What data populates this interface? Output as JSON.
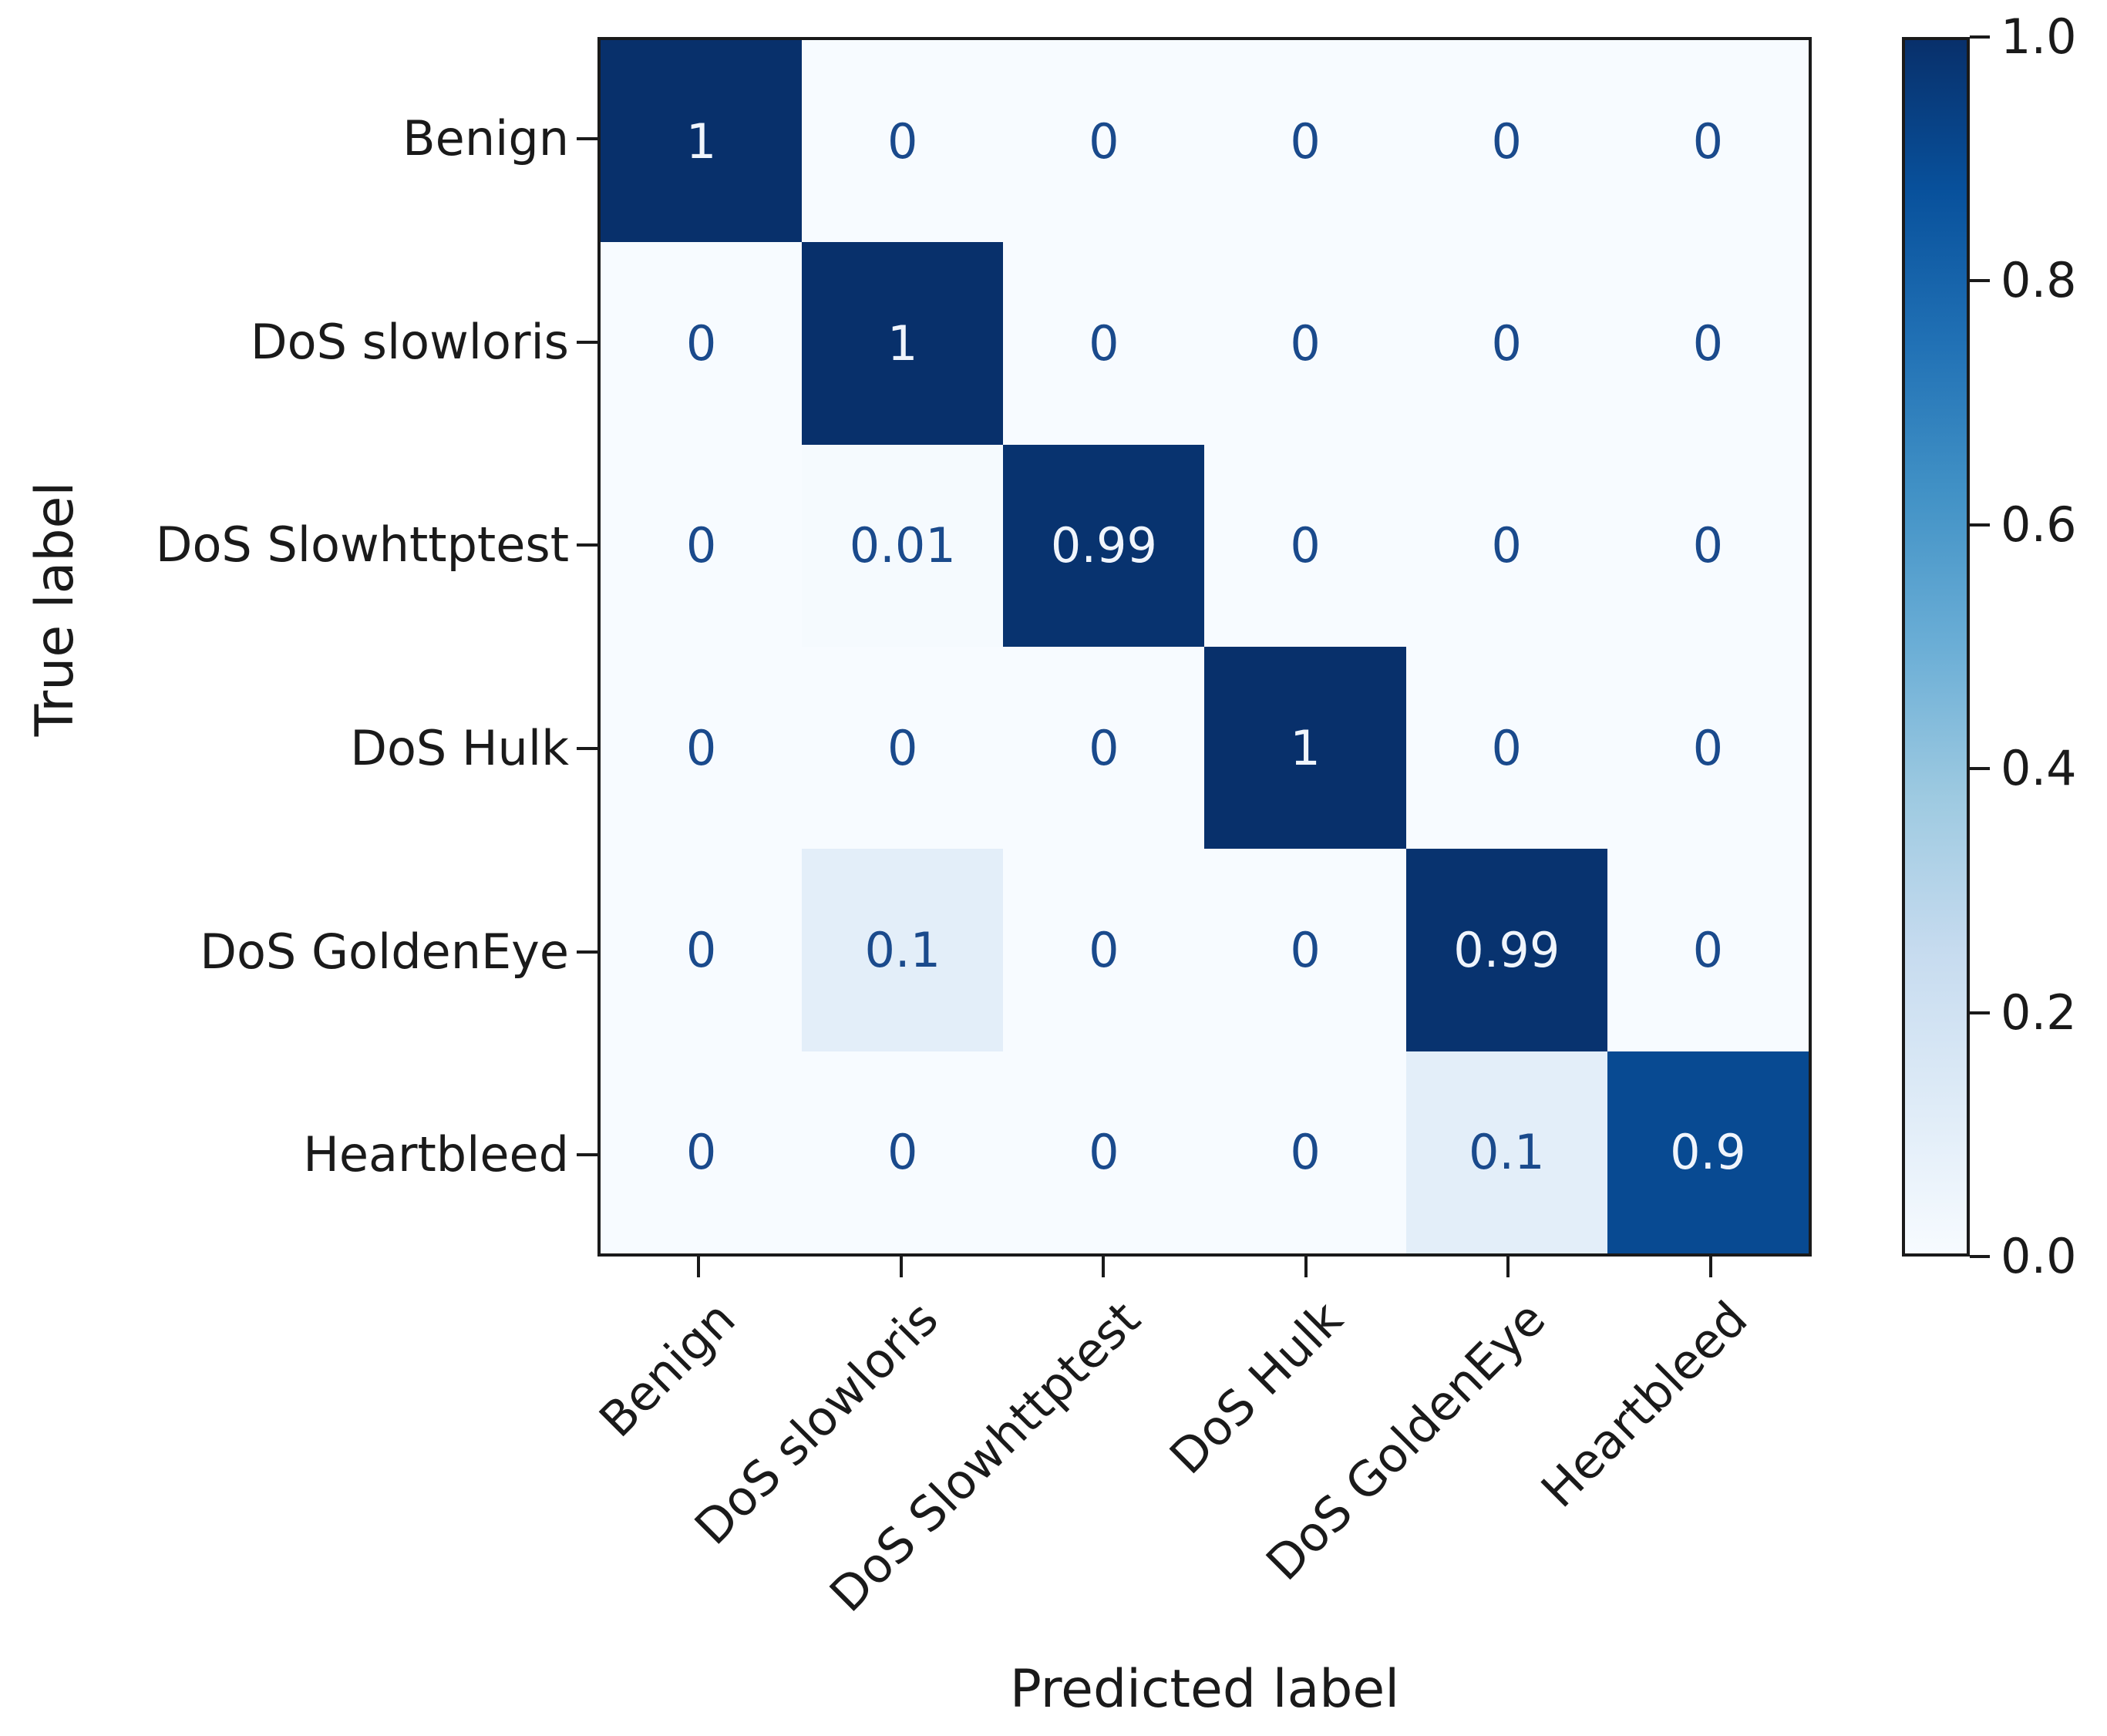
{
  "chart_data": {
    "type": "heatmap",
    "subtype": "confusion-matrix",
    "title": "",
    "xlabel": "Predicted label",
    "ylabel": "True label",
    "categories": [
      "Benign",
      "DoS slowloris",
      "DoS Slowhttptest",
      "DoS Hulk",
      "DoS GoldenEye",
      "Heartbleed"
    ],
    "matrix": [
      [
        1,
        0,
        0,
        0,
        0,
        0
      ],
      [
        0,
        1,
        0,
        0,
        0,
        0
      ],
      [
        0,
        0.01,
        0.99,
        0,
        0,
        0
      ],
      [
        0,
        0,
        0,
        1,
        0,
        0
      ],
      [
        0,
        0.1,
        0,
        0,
        0.99,
        0
      ],
      [
        0,
        0,
        0,
        0,
        0.1,
        0.9
      ]
    ],
    "value_range": [
      0,
      1
    ],
    "grid": false,
    "colorbar": {
      "position": "right",
      "min": 0.0,
      "max": 1.0,
      "tick_labels": [
        "1.0",
        "0.8",
        "0.6",
        "0.4",
        "0.2",
        "0.0"
      ]
    },
    "colormap": {
      "name": "Blues",
      "stops": [
        "#f7fbff",
        "#deebf7",
        "#c6dbef",
        "#9ecae1",
        "#6baed6",
        "#4292c6",
        "#2171b5",
        "#08519c",
        "#08306b"
      ]
    },
    "colors": {
      "annotation_on_dark": "#f0f5fc",
      "annotation_on_light": "#1a4a8c",
      "axis": "#1a1a1a",
      "background": "#ffffff"
    }
  },
  "layout_labels": {
    "x_axis_title": "Predicted label",
    "y_axis_title": "True label"
  }
}
